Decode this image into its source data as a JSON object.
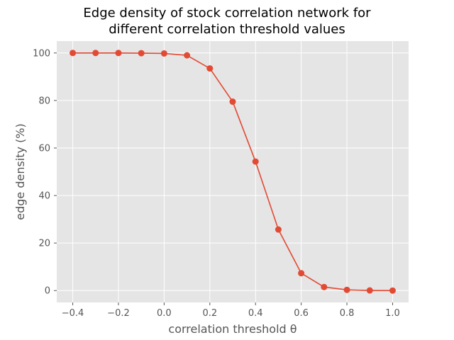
{
  "chart_data": {
    "type": "line",
    "title_lines": [
      "Edge density of stock correlation network for",
      "different correlation threshold values"
    ],
    "xlabel": "correlation threshold θ",
    "ylabel": "edge density (%)",
    "xlim": [
      -0.47,
      1.07
    ],
    "ylim": [
      -5,
      105
    ],
    "xticks": [
      -0.4,
      -0.2,
      0.0,
      0.2,
      0.4,
      0.6,
      0.8,
      1.0
    ],
    "xtick_labels": [
      "−0.4",
      "−0.2",
      "0.0",
      "0.2",
      "0.4",
      "0.6",
      "0.8",
      "1.0"
    ],
    "yticks": [
      0,
      20,
      40,
      60,
      80,
      100
    ],
    "ytick_labels": [
      "0",
      "20",
      "40",
      "60",
      "80",
      "100"
    ],
    "grid": true,
    "background": "#e5e5e5",
    "grid_color": "#ffffff",
    "series": [
      {
        "color": "#e24a33",
        "marker": "circle",
        "x": [
          -0.4,
          -0.3,
          -0.2,
          -0.1,
          0.0,
          0.1,
          0.2,
          0.3,
          0.4,
          0.5,
          0.6,
          0.7,
          0.8,
          0.9,
          1.0
        ],
        "y": [
          100,
          100,
          100,
          99.9,
          99.8,
          99,
          93.5,
          79.5,
          54.3,
          25.7,
          7.3,
          1.5,
          0.3,
          0.05,
          0.0
        ]
      }
    ]
  }
}
